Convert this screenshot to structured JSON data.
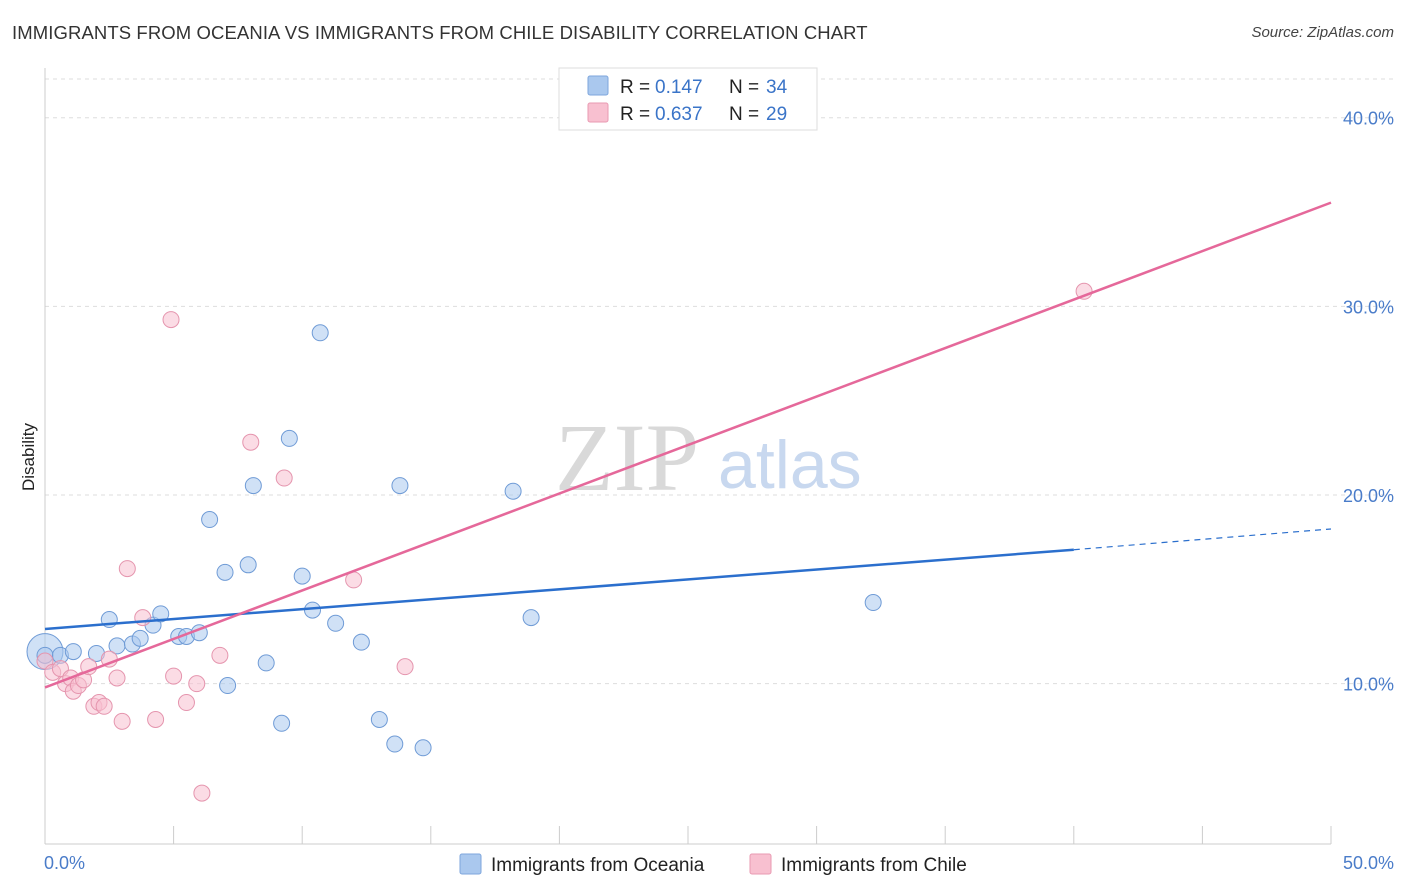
{
  "chart_data": {
    "type": "scatter",
    "title": "IMMIGRANTS FROM OCEANIA VS IMMIGRANTS FROM CHILE DISABILITY CORRELATION CHART",
    "source": "Source: ZipAtlas.com",
    "xlabel": "",
    "ylabel": "Disability",
    "xlim": [
      0,
      50
    ],
    "ylim": [
      1.5,
      42
    ],
    "x_tick_labels": [
      "0.0%",
      "50.0%"
    ],
    "y_ticks": [
      10,
      20,
      30,
      40
    ],
    "y_tick_labels": [
      "10.0%",
      "20.0%",
      "30.0%",
      "40.0%"
    ],
    "grid": true,
    "watermark": {
      "zip": "ZIP",
      "atlas": "atlas"
    },
    "legend_stats": [
      {
        "r_label": "R = ",
        "r_value": "0.147",
        "n_label": "N = ",
        "n_value": "34",
        "color": "#aac8ee",
        "stroke": "#7ea6dc"
      },
      {
        "r_label": "R = ",
        "r_value": "0.637",
        "n_label": "N = ",
        "n_value": "29",
        "color": "#f8c0d0",
        "stroke": "#e99ab2"
      }
    ],
    "series": [
      {
        "name": "Immigrants from Oceania",
        "color": "#aac8ee",
        "stroke": "#6f9bd6",
        "line_color": "#2b6fcd",
        "trend": {
          "x0": 0,
          "y0": 12.9,
          "x1": 40,
          "y1": 17.1,
          "dash_x_end": 50,
          "dash_y_end": 18.2
        },
        "points": [
          [
            0.0,
            11.5
          ],
          [
            0.6,
            11.5
          ],
          [
            1.1,
            11.7
          ],
          [
            2.0,
            11.6
          ],
          [
            2.5,
            13.4
          ],
          [
            2.8,
            12.0
          ],
          [
            3.4,
            12.1
          ],
          [
            3.7,
            12.4
          ],
          [
            4.2,
            13.1
          ],
          [
            4.5,
            13.7
          ],
          [
            5.2,
            12.5
          ],
          [
            5.5,
            12.5
          ],
          [
            6.0,
            12.7
          ],
          [
            6.4,
            18.7
          ],
          [
            7.0,
            15.9
          ],
          [
            7.1,
            9.9
          ],
          [
            7.9,
            16.3
          ],
          [
            8.1,
            20.5
          ],
          [
            8.6,
            11.1
          ],
          [
            9.2,
            7.9
          ],
          [
            9.5,
            23.0
          ],
          [
            10.0,
            15.7
          ],
          [
            10.4,
            13.9
          ],
          [
            10.7,
            28.6
          ],
          [
            11.3,
            13.2
          ],
          [
            12.3,
            12.2
          ],
          [
            13.0,
            8.1
          ],
          [
            13.6,
            6.8
          ],
          [
            13.8,
            20.5
          ],
          [
            14.7,
            6.6
          ],
          [
            18.2,
            20.2
          ],
          [
            18.9,
            13.5
          ],
          [
            32.2,
            14.3
          ]
        ],
        "big_point": [
          0.0,
          11.7
        ]
      },
      {
        "name": "Immigrants from Chile",
        "color": "#f8c0d0",
        "stroke": "#e595ae",
        "line_color": "#e5689a",
        "trend": {
          "x0": 0,
          "y0": 9.8,
          "x1": 50,
          "y1": 35.5
        },
        "points": [
          [
            0.0,
            11.2
          ],
          [
            0.3,
            10.6
          ],
          [
            0.6,
            10.8
          ],
          [
            0.8,
            10.0
          ],
          [
            1.0,
            10.3
          ],
          [
            1.1,
            9.6
          ],
          [
            1.3,
            9.9
          ],
          [
            1.5,
            10.2
          ],
          [
            1.7,
            10.9
          ],
          [
            1.9,
            8.8
          ],
          [
            2.1,
            9.0
          ],
          [
            2.3,
            8.8
          ],
          [
            2.5,
            11.3
          ],
          [
            2.8,
            10.3
          ],
          [
            3.0,
            8.0
          ],
          [
            3.2,
            16.1
          ],
          [
            3.8,
            13.5
          ],
          [
            4.3,
            8.1
          ],
          [
            4.9,
            29.3
          ],
          [
            5.0,
            10.4
          ],
          [
            5.5,
            9.0
          ],
          [
            5.9,
            10.0
          ],
          [
            6.1,
            4.2
          ],
          [
            6.8,
            11.5
          ],
          [
            8.0,
            22.8
          ],
          [
            9.3,
            20.9
          ],
          [
            12.0,
            15.5
          ],
          [
            14.0,
            10.9
          ],
          [
            40.4,
            30.8
          ]
        ]
      }
    ]
  }
}
